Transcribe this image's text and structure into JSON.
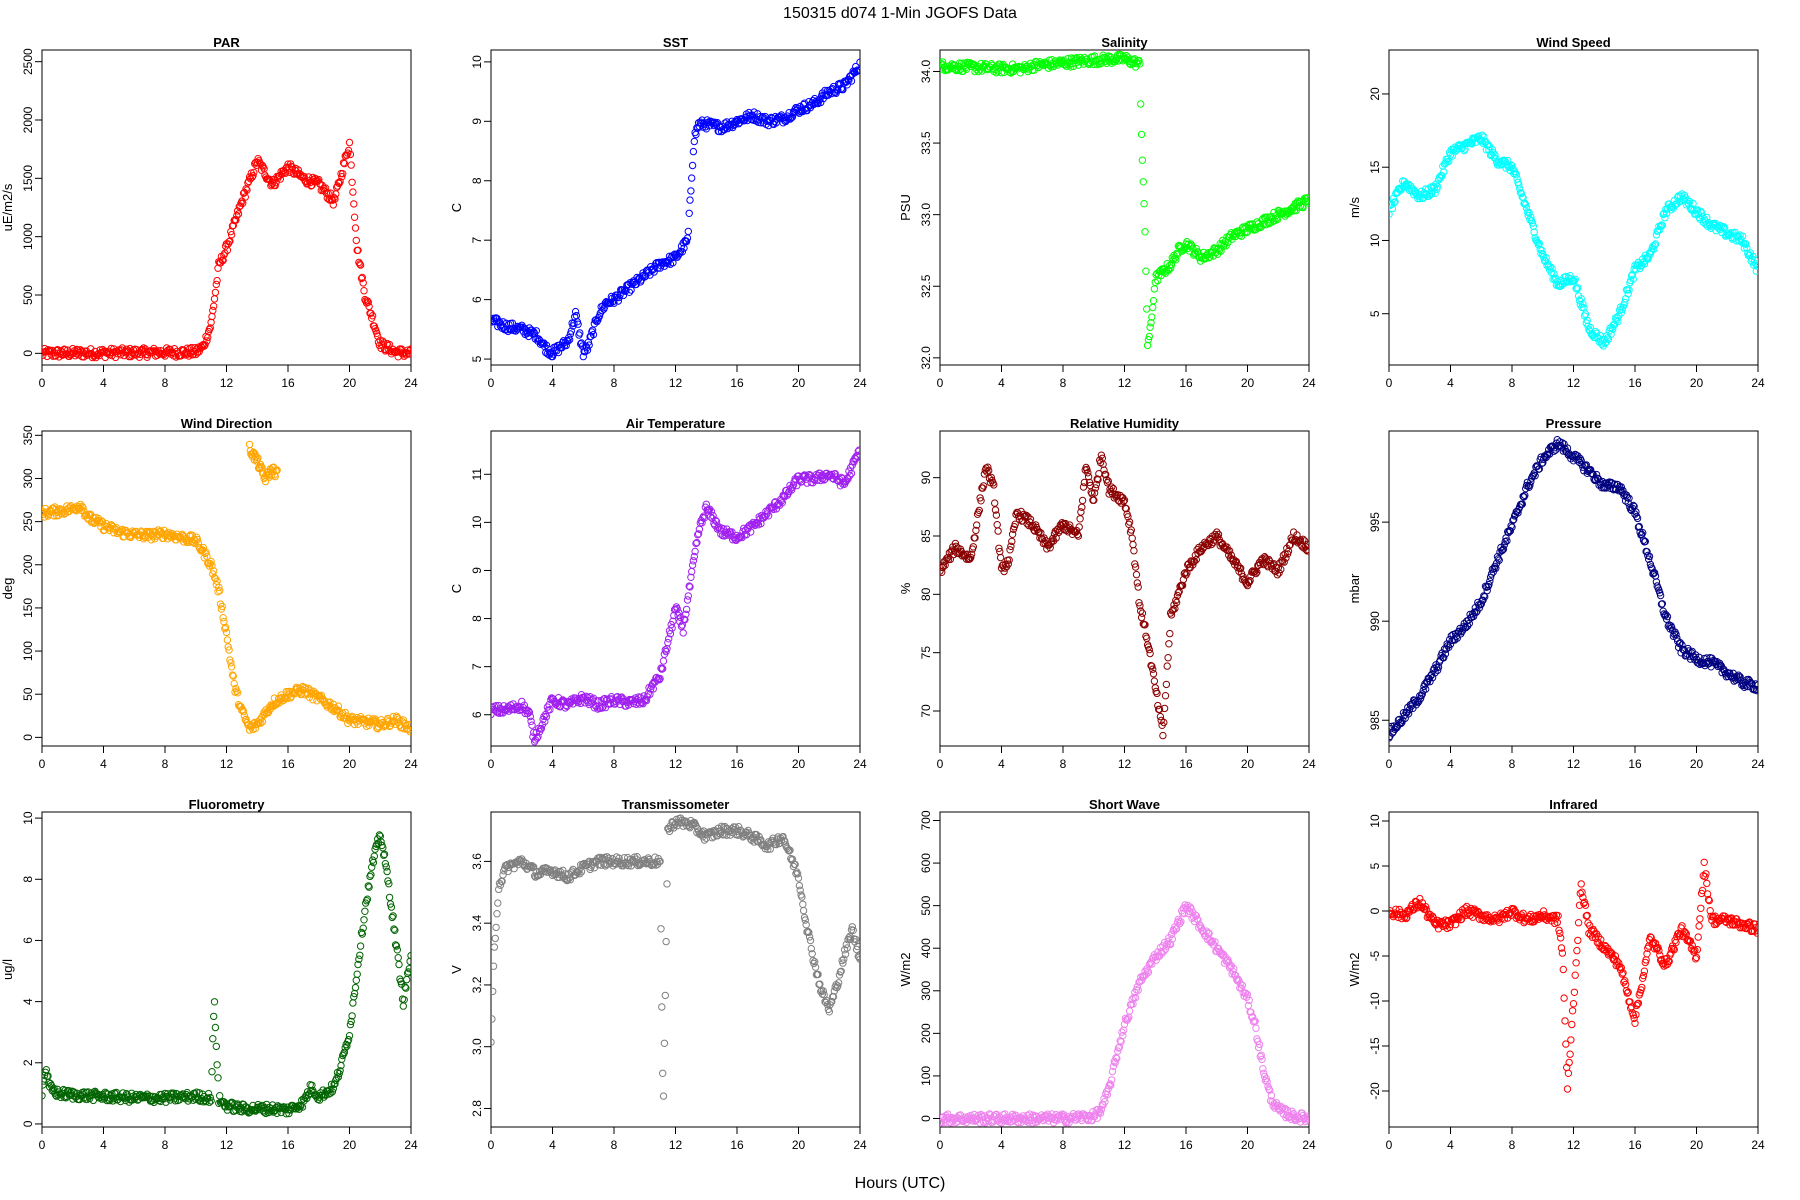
{
  "page": {
    "title": "150315   d074   1-Min  JGOFS Data",
    "xlabel": "Hours (UTC)"
  },
  "chart_data": [
    {
      "type": "scatter",
      "title": "PAR",
      "ylabel": "uE/m2/s",
      "xlabel": "",
      "xlim": [
        0,
        24
      ],
      "ylim": [
        -100,
        2600
      ],
      "x_ticks": [
        0,
        4,
        8,
        12,
        16,
        20,
        24
      ],
      "y_ticks": [
        0,
        500,
        1000,
        1500,
        2000,
        2500
      ],
      "color": "#ff0000",
      "grid": false,
      "series": [
        {
          "x": [
            0,
            10,
            10.5,
            11,
            11.5,
            12,
            13,
            14,
            15,
            16,
            17,
            18,
            19,
            20,
            20.5,
            21,
            21.5,
            22,
            23,
            24
          ],
          "y": [
            0,
            10,
            60,
            250,
            750,
            900,
            1300,
            1650,
            1450,
            1600,
            1500,
            1450,
            1300,
            1800,
            900,
            500,
            300,
            80,
            10,
            0
          ]
        }
      ]
    },
    {
      "type": "scatter",
      "title": "SST",
      "ylabel": "C",
      "xlabel": "",
      "xlim": [
        0,
        24
      ],
      "ylim": [
        4.9,
        10.2
      ],
      "x_ticks": [
        0,
        4,
        8,
        12,
        16,
        20,
        24
      ],
      "y_ticks": [
        5,
        6,
        7,
        8,
        9,
        10
      ],
      "color": "#0000ff",
      "grid": false,
      "series": [
        {
          "x": [
            0,
            1,
            2,
            3,
            3.5,
            4,
            4.5,
            5,
            5.5,
            6,
            6.3,
            7,
            7.5,
            8,
            9,
            10,
            11,
            12,
            12.8,
            13.2,
            13.5,
            14,
            15,
            16,
            17,
            18,
            19,
            20,
            21,
            22,
            23,
            24
          ],
          "y": [
            5.65,
            5.55,
            5.5,
            5.4,
            5.2,
            5.1,
            5.2,
            5.3,
            5.75,
            5.1,
            5.2,
            5.75,
            5.95,
            6.0,
            6.2,
            6.4,
            6.6,
            6.7,
            7.0,
            8.7,
            8.95,
            8.95,
            8.9,
            9.0,
            9.1,
            9.0,
            9.05,
            9.2,
            9.3,
            9.5,
            9.6,
            9.95
          ]
        }
      ]
    },
    {
      "type": "scatter",
      "title": "Salinity",
      "ylabel": "PSU",
      "xlabel": "",
      "xlim": [
        0,
        24
      ],
      "ylim": [
        31.95,
        34.15
      ],
      "x_ticks": [
        0,
        4,
        8,
        12,
        16,
        20,
        24
      ],
      "y_ticks": [
        32.0,
        32.5,
        33.0,
        33.5,
        34.0
      ],
      "color": "#00ff00",
      "grid": false,
      "series": [
        {
          "x": [
            0,
            2,
            4,
            5.5,
            6,
            7,
            8,
            10,
            12,
            13,
            13.1,
            13.3,
            13.5,
            13.7,
            14,
            14.5,
            15,
            15.5,
            16,
            17,
            18,
            19,
            20,
            21,
            22,
            23,
            24
          ],
          "y": [
            34.04,
            34.03,
            34.02,
            34.02,
            34.04,
            34.05,
            34.06,
            34.08,
            34.09,
            34.05,
            33.6,
            33.0,
            32.1,
            32.2,
            32.55,
            32.6,
            32.65,
            32.75,
            32.8,
            32.7,
            32.75,
            32.85,
            32.9,
            32.95,
            33.0,
            33.05,
            33.1
          ]
        }
      ]
    },
    {
      "type": "scatter",
      "title": "Wind Speed",
      "ylabel": "m/s",
      "xlabel": "",
      "xlim": [
        0,
        24
      ],
      "ylim": [
        1.5,
        23
      ],
      "x_ticks": [
        0,
        4,
        8,
        12,
        16,
        20,
        24
      ],
      "y_ticks": [
        5,
        10,
        15,
        20
      ],
      "color": "#00ffff",
      "grid": false,
      "series": [
        {
          "x": [
            0,
            1,
            2,
            3,
            4,
            5,
            6,
            7,
            8,
            9,
            10,
            11,
            12,
            13,
            14,
            15,
            16,
            17,
            18,
            19,
            20,
            21,
            22,
            23,
            24
          ],
          "y": [
            12,
            14,
            13,
            13.5,
            16,
            16.5,
            17,
            15.5,
            15,
            12,
            9,
            7,
            7.5,
            4,
            3,
            5,
            8,
            9,
            12,
            13,
            12,
            11,
            10.5,
            10,
            8
          ]
        }
      ]
    },
    {
      "type": "scatter",
      "title": "Wind Direction",
      "ylabel": "deg",
      "xlabel": "",
      "xlim": [
        0,
        24
      ],
      "ylim": [
        -10,
        355
      ],
      "x_ticks": [
        0,
        4,
        8,
        12,
        16,
        20,
        24
      ],
      "y_ticks": [
        0,
        50,
        100,
        150,
        200,
        250,
        300,
        350
      ],
      "color": "#ffa500",
      "grid": false,
      "series": [
        {
          "x": [
            0,
            1,
            2,
            2.5,
            3,
            4,
            5,
            6,
            7,
            8,
            9,
            10,
            10.5,
            11,
            11.5,
            12,
            12.5,
            13,
            13.5,
            14,
            15,
            16,
            17,
            18,
            19,
            20,
            21,
            22,
            23,
            24
          ],
          "y": [
            260,
            262,
            265,
            270,
            255,
            245,
            238,
            235,
            234,
            236,
            232,
            228,
            215,
            200,
            170,
            120,
            60,
            30,
            10,
            15,
            40,
            50,
            55,
            45,
            35,
            20,
            18,
            15,
            20,
            10
          ]
        },
        {
          "x": [
            13.5,
            14,
            14.5,
            15,
            15.3
          ],
          "y": [
            335,
            320,
            300,
            310,
            305
          ]
        }
      ]
    },
    {
      "type": "scatter",
      "title": "Air Temperature",
      "ylabel": "C",
      "xlabel": "",
      "xlim": [
        0,
        24
      ],
      "ylim": [
        5.35,
        11.9
      ],
      "x_ticks": [
        0,
        4,
        8,
        12,
        16,
        20,
        24
      ],
      "y_ticks": [
        6,
        7,
        8,
        9,
        10,
        11
      ],
      "color": "#a020f0",
      "grid": false,
      "series": [
        {
          "x": [
            0,
            1,
            2,
            2.5,
            2.8,
            3,
            4,
            5,
            6,
            7,
            8,
            9,
            10,
            10.5,
            11,
            11.5,
            12,
            12.5,
            13,
            13.5,
            14,
            15,
            16,
            17,
            18,
            19,
            20,
            21,
            22,
            23,
            24
          ],
          "y": [
            6.1,
            6.1,
            6.2,
            6.0,
            5.5,
            5.6,
            6.3,
            6.2,
            6.35,
            6.2,
            6.3,
            6.25,
            6.3,
            6.6,
            6.8,
            7.5,
            8.2,
            7.8,
            8.8,
            9.8,
            10.3,
            9.8,
            9.7,
            9.9,
            10.2,
            10.5,
            10.9,
            10.9,
            11.0,
            10.8,
            11.5
          ]
        }
      ]
    },
    {
      "type": "scatter",
      "title": "Relative Humidity",
      "ylabel": "%",
      "xlabel": "",
      "xlim": [
        0,
        24
      ],
      "ylim": [
        67,
        94
      ],
      "x_ticks": [
        0,
        4,
        8,
        12,
        16,
        20,
        24
      ],
      "y_ticks": [
        70,
        75,
        80,
        85,
        90
      ],
      "color": "#8b0000",
      "grid": false,
      "series": [
        {
          "x": [
            0,
            1,
            2,
            2.5,
            3,
            3.5,
            4,
            4.5,
            5,
            6,
            7,
            8,
            9,
            9.5,
            10,
            10.5,
            11,
            12,
            12.5,
            13,
            13.5,
            14,
            14.5,
            15,
            16,
            17,
            18,
            19,
            20,
            21,
            22,
            23,
            24
          ],
          "y": [
            82,
            84,
            83,
            87,
            91,
            89,
            82,
            83,
            87,
            86,
            84,
            86,
            85,
            91,
            88,
            92,
            89,
            88,
            85,
            79,
            76,
            72,
            68,
            78,
            82,
            84,
            85,
            83,
            81,
            83,
            82,
            85,
            84
          ]
        }
      ]
    },
    {
      "type": "scatter",
      "title": "Pressure",
      "ylabel": "mbar",
      "xlabel": "",
      "xlim": [
        0,
        24
      ],
      "ylim": [
        983.7,
        999.6
      ],
      "x_ticks": [
        0,
        4,
        8,
        12,
        16,
        20,
        24
      ],
      "y_ticks": [
        985,
        990,
        995
      ],
      "color": "#000080",
      "grid": false,
      "series": [
        {
          "x": [
            0,
            1,
            2,
            3,
            4,
            5,
            6,
            7,
            8,
            9,
            10,
            11,
            12,
            13,
            14,
            15,
            16,
            17,
            18,
            19,
            20,
            21,
            22,
            23,
            24
          ],
          "y": [
            984.3,
            985.2,
            986.2,
            987.5,
            989.0,
            989.8,
            991.0,
            993.0,
            994.8,
            996.8,
            998.2,
            999.0,
            998.3,
            997.6,
            996.8,
            996.8,
            995.5,
            993.0,
            990.2,
            988.6,
            988.1,
            987.9,
            987.4,
            986.9,
            986.7
          ]
        }
      ]
    },
    {
      "type": "scatter",
      "title": "Fluorometry",
      "ylabel": "ug/l",
      "xlabel": "",
      "xlim": [
        0,
        24
      ],
      "ylim": [
        -0.1,
        10.2
      ],
      "x_ticks": [
        0,
        4,
        8,
        12,
        16,
        20,
        24
      ],
      "y_ticks": [
        0,
        2,
        4,
        6,
        8,
        10
      ],
      "color": "#006400",
      "grid": false,
      "series": [
        {
          "x": [
            0,
            0.2,
            0.5,
            1,
            2,
            4,
            6,
            8,
            10,
            11,
            11.2,
            11.5,
            12,
            13,
            14,
            15,
            16,
            17,
            17.5,
            18,
            19,
            19.5,
            20,
            20.5,
            21,
            21.5,
            22,
            22.5,
            23,
            23.5,
            24
          ],
          "y": [
            1.0,
            1.8,
            1.2,
            1.0,
            0.95,
            0.9,
            0.85,
            0.85,
            0.9,
            0.85,
            4.1,
            0.8,
            0.6,
            0.5,
            0.5,
            0.5,
            0.45,
            0.7,
            1.2,
            0.9,
            1.2,
            2.0,
            3.0,
            5.0,
            7.0,
            8.5,
            9.5,
            8.0,
            6.0,
            4.0,
            5.5
          ]
        }
      ]
    },
    {
      "type": "scatter",
      "title": "Transmissometer",
      "ylabel": "V",
      "xlabel": "",
      "xlim": [
        0,
        24
      ],
      "ylim": [
        2.74,
        3.76
      ],
      "x_ticks": [
        0,
        4,
        8,
        12,
        16,
        20,
        24
      ],
      "y_ticks": [
        2.8,
        3.0,
        3.2,
        3.4,
        3.6
      ],
      "color": "#808080",
      "grid": false,
      "series": [
        {
          "x": [
            0,
            0.2,
            0.5,
            1,
            2,
            3,
            4,
            5,
            6,
            7,
            8,
            9,
            10,
            11,
            11.2,
            11.5,
            12,
            13,
            14,
            15,
            16,
            17,
            18,
            19,
            20,
            20.5,
            21,
            21.5,
            22,
            22.5,
            23,
            23.5,
            24
          ],
          "y": [
            3.0,
            3.3,
            3.52,
            3.58,
            3.6,
            3.56,
            3.57,
            3.55,
            3.58,
            3.6,
            3.6,
            3.6,
            3.6,
            3.6,
            2.76,
            3.7,
            3.73,
            3.72,
            3.68,
            3.7,
            3.7,
            3.68,
            3.65,
            3.68,
            3.55,
            3.4,
            3.28,
            3.18,
            3.12,
            3.2,
            3.3,
            3.38,
            3.28
          ]
        }
      ]
    },
    {
      "type": "scatter",
      "title": "Short Wave",
      "ylabel": "W/m2",
      "xlabel": "",
      "xlim": [
        0,
        24
      ],
      "ylim": [
        -20,
        720
      ],
      "x_ticks": [
        0,
        4,
        8,
        12,
        16,
        20,
        24
      ],
      "y_ticks": [
        0,
        100,
        200,
        300,
        400,
        500,
        600,
        700
      ],
      "color": "#ee82ee",
      "grid": false,
      "series": [
        {
          "x": [
            0,
            8,
            10,
            10.5,
            11,
            11.5,
            12,
            13,
            14,
            15,
            16,
            17,
            18,
            19,
            20,
            20.5,
            21,
            21.5,
            22,
            23,
            24
          ],
          "y": [
            0,
            0,
            5,
            20,
            70,
            150,
            220,
            320,
            380,
            420,
            500,
            450,
            400,
            350,
            280,
            220,
            120,
            50,
            20,
            5,
            0
          ]
        }
      ]
    },
    {
      "type": "scatter",
      "title": "Infrared",
      "ylabel": "W/m2",
      "xlabel": "",
      "xlim": [
        0,
        24
      ],
      "ylim": [
        -24,
        11
      ],
      "x_ticks": [
        0,
        4,
        8,
        12,
        16,
        20,
        24
      ],
      "y_ticks": [
        -20,
        -15,
        -10,
        -5,
        0,
        5,
        10
      ],
      "color": "#ff0000",
      "grid": false,
      "series": [
        {
          "x": [
            0,
            1,
            2,
            3,
            4,
            5,
            6,
            7,
            8,
            9,
            10,
            11,
            11.3,
            11.6,
            12,
            12.5,
            13,
            14,
            15,
            16,
            17,
            18,
            19,
            20,
            20.5,
            21,
            22,
            23,
            24
          ],
          "y": [
            0,
            -0.5,
            1,
            -1.5,
            -1.5,
            0,
            -0.5,
            -1,
            0,
            -1,
            -0.5,
            -1,
            -5,
            -20,
            -10,
            3,
            -2,
            -4,
            -6,
            -12,
            -3,
            -6,
            -2,
            -5,
            5,
            -1,
            -1,
            -1.5,
            -2
          ]
        }
      ]
    }
  ]
}
